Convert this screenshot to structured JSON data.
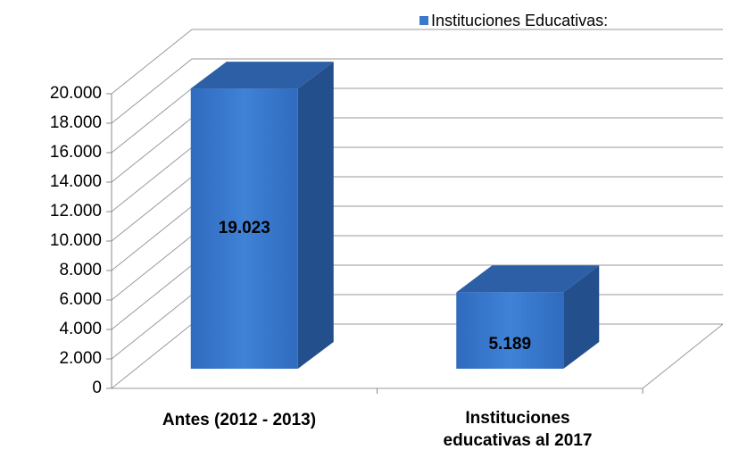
{
  "chart_data": {
    "type": "bar3d",
    "categories": [
      "Antes (2012 - 2013)",
      "Instituciones educativas al 2017"
    ],
    "series": [
      {
        "name": "Instituciones Educativas:",
        "color": "#3a78c9",
        "values": [
          19023,
          5189
        ],
        "value_labels": [
          "19.023",
          "5.189"
        ]
      }
    ],
    "ylim": [
      0,
      20000
    ],
    "yticks": [
      0,
      {
        "value": 2000,
        "label": "2.000"
      },
      {
        "value": 4000,
        "label": "4.000"
      },
      {
        "value": 6000,
        "label": "6.000"
      },
      {
        "value": 8000,
        "label": "8.000"
      },
      {
        "value": 10000,
        "label": "10.000"
      },
      {
        "value": 12000,
        "label": "12.000"
      },
      {
        "value": 14000,
        "label": "14.000"
      },
      {
        "value": 16000,
        "label": "16.000"
      },
      {
        "value": 18000,
        "label": "18.000"
      },
      {
        "value": 20000,
        "label": "20.000"
      }
    ],
    "grid": true,
    "legend": "top-right"
  }
}
